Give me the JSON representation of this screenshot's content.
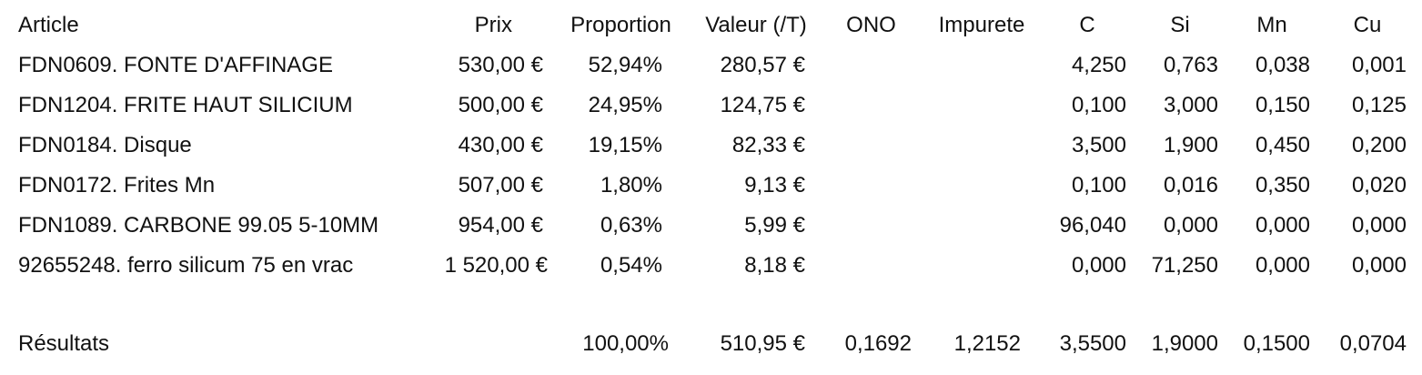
{
  "table": {
    "headers": {
      "article": "Article",
      "prix": "Prix",
      "proportion": "Proportion",
      "valeur": "Valeur (/T)",
      "ono": "ONO",
      "impurete": "Impurete",
      "c": "C",
      "si": "Si",
      "mn": "Mn",
      "cu": "Cu"
    },
    "rows": [
      {
        "article": "FDN0609. FONTE D'AFFINAGE",
        "prix": "530,00 €",
        "proportion": "52,94%",
        "valeur": "280,57 €",
        "ono": "",
        "impurete": "",
        "c": "4,250",
        "si": "0,763",
        "mn": "0,038",
        "cu": "0,001"
      },
      {
        "article": "FDN1204. FRITE HAUT SILICIUM",
        "prix": "500,00 €",
        "proportion": "24,95%",
        "valeur": "124,75 €",
        "ono": "",
        "impurete": "",
        "c": "0,100",
        "si": "3,000",
        "mn": "0,150",
        "cu": "0,125"
      },
      {
        "article": "FDN0184. Disque",
        "prix": "430,00 €",
        "proportion": "19,15%",
        "valeur": "82,33 €",
        "ono": "",
        "impurete": "",
        "c": "3,500",
        "si": "1,900",
        "mn": "0,450",
        "cu": "0,200"
      },
      {
        "article": "FDN0172. Frites Mn",
        "prix": "507,00 €",
        "proportion": "1,80%",
        "valeur": "9,13 €",
        "ono": "",
        "impurete": "",
        "c": "0,100",
        "si": "0,016",
        "mn": "0,350",
        "cu": "0,020"
      },
      {
        "article": "FDN1089. CARBONE 99.05 5-10MM",
        "prix": "954,00 €",
        "proportion": "0,63%",
        "valeur": "5,99 €",
        "ono": "",
        "impurete": "",
        "c": "96,040",
        "si": "0,000",
        "mn": "0,000",
        "cu": "0,000"
      },
      {
        "article": "92655248. ferro silicum 75 en vrac",
        "prix": "1 520,00 €",
        "proportion": "0,54%",
        "valeur": "8,18 €",
        "ono": "",
        "impurete": "",
        "c": "0,000",
        "si": "71,250",
        "mn": "0,000",
        "cu": "0,000"
      }
    ],
    "results": {
      "label": "Résultats",
      "proportion": "100,00%",
      "valeur": "510,95 €",
      "ono": "0,1692",
      "impurete": "1,2152",
      "c": "3,5500",
      "si": "1,9000",
      "mn": "0,1500",
      "cu": "0,0704"
    }
  }
}
